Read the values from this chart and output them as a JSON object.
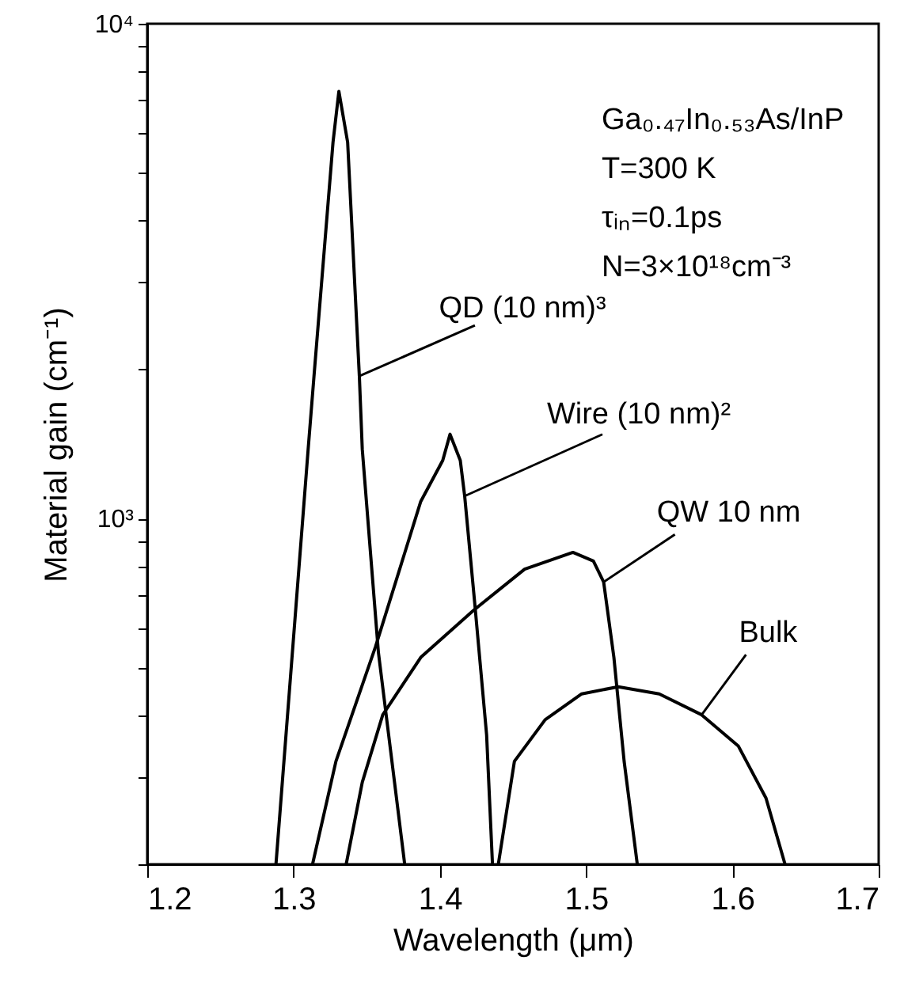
{
  "chart_data": {
    "type": "line",
    "xlabel": "Wavelength (μm)",
    "ylabel": "Material gain (cm⁻¹)",
    "log": "y",
    "grid": false,
    "marker": "none",
    "line_style": "solid",
    "xlim": [
      1.2,
      1.7
    ],
    "xticks": [
      1.2,
      1.3,
      1.4,
      1.5,
      1.6,
      1.7
    ],
    "ylim": [
      200,
      10000
    ],
    "yticks": [
      {
        "value": 200,
        "label": null
      },
      {
        "value": 300,
        "label": null
      },
      {
        "value": 400,
        "label": null
      },
      {
        "value": 500,
        "label": null
      },
      {
        "value": 600,
        "label": null
      },
      {
        "value": 700,
        "label": null
      },
      {
        "value": 800,
        "label": null
      },
      {
        "value": 900,
        "label": null
      },
      {
        "value": 1000,
        "label": "10³"
      },
      {
        "value": 2000,
        "label": null
      },
      {
        "value": 3000,
        "label": null
      },
      {
        "value": 4000,
        "label": null
      },
      {
        "value": 5000,
        "label": null
      },
      {
        "value": 6000,
        "label": null
      },
      {
        "value": 7000,
        "label": null
      },
      {
        "value": 8000,
        "label": null
      },
      {
        "value": 9000,
        "label": null
      },
      {
        "value": 10000,
        "label": "10⁴"
      }
    ],
    "series": [
      {
        "name": "QD (10 nm)³",
        "color": "#000000",
        "x": [
          1.288,
          1.31,
          1.314,
          1.327,
          1.331,
          1.337,
          1.345,
          1.347,
          1.358,
          1.376
        ],
        "values": [
          200,
          1380,
          1940,
          5760,
          7300,
          5760,
          1940,
          1380,
          537,
          200
        ]
      },
      {
        "name": "Wire (10 nm)²",
        "color": "#000000",
        "x": [
          1.313,
          1.329,
          1.356,
          1.387,
          1.402,
          1.407,
          1.414,
          1.417,
          1.424,
          1.432,
          1.436
        ],
        "values": [
          200,
          323,
          550,
          1083,
          1310,
          1480,
          1310,
          1110,
          668,
          365,
          200
        ]
      },
      {
        "name": "QW 10 nm",
        "color": "#000000",
        "x": [
          1.336,
          1.347,
          1.361,
          1.387,
          1.423,
          1.458,
          1.491,
          1.505,
          1.512,
          1.519,
          1.526,
          1.535
        ],
        "values": [
          200,
          293,
          401,
          524,
          652,
          790,
          854,
          820,
          744,
          524,
          323,
          200
        ]
      },
      {
        "name": "Bulk",
        "color": "#000000",
        "x": [
          1.44,
          1.451,
          1.472,
          1.497,
          1.522,
          1.55,
          1.579,
          1.604,
          1.623,
          1.636
        ],
        "values": [
          200,
          323,
          392,
          442,
          457,
          442,
          401,
          347,
          272,
          200
        ]
      }
    ],
    "annotations": [
      "Ga₀.₄₇In₀.₅₃As/InP",
      "T=300 K",
      "τᵢₙ=0.1ps",
      "N=3×10¹⁸cm⁻³"
    ]
  }
}
